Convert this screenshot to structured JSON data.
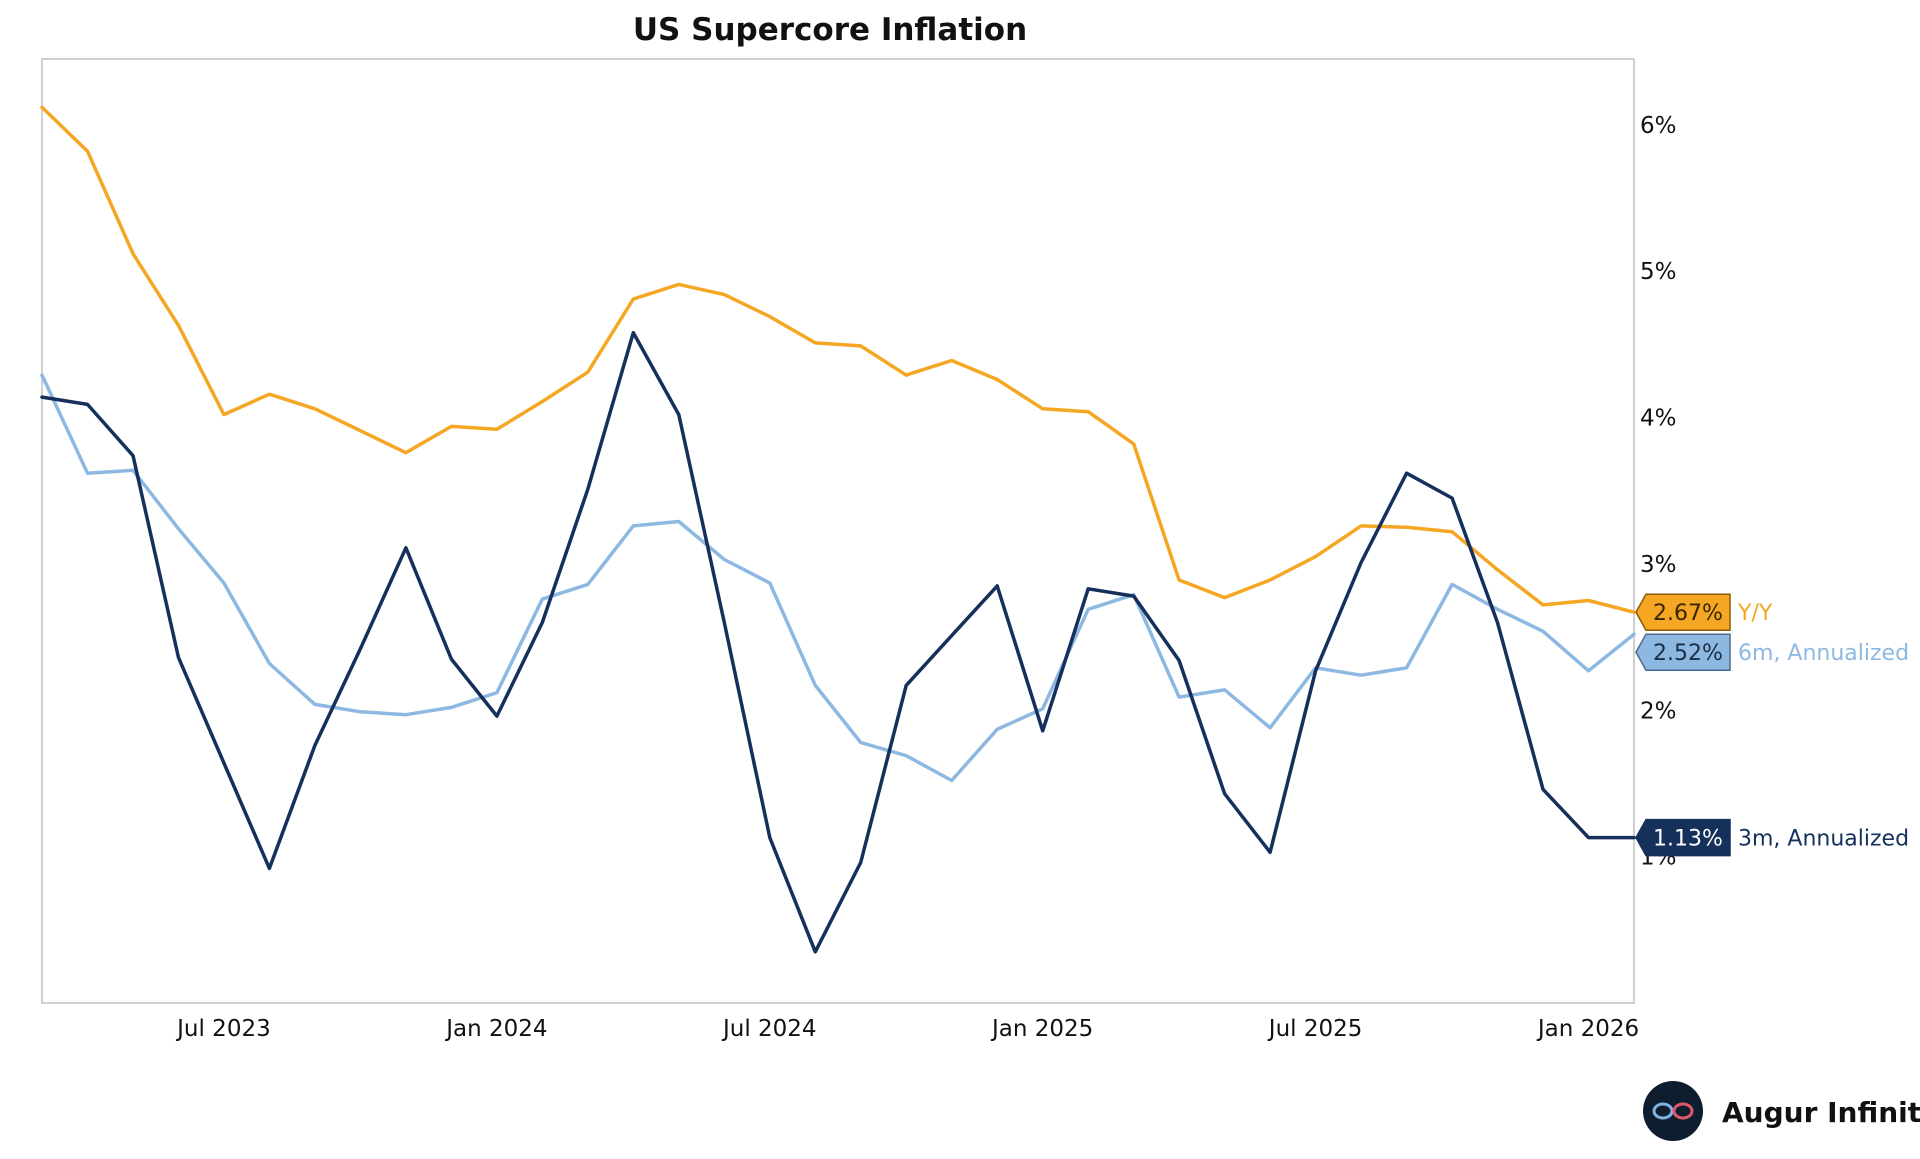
{
  "chart_data": {
    "type": "line",
    "title": "US Supercore Inflation",
    "x": [
      "2023-03",
      "2023-04",
      "2023-05",
      "2023-06",
      "2023-07",
      "2023-08",
      "2023-09",
      "2023-10",
      "2023-11",
      "2023-12",
      "2024-01",
      "2024-02",
      "2024-03",
      "2024-04",
      "2024-05",
      "2024-06",
      "2024-07",
      "2024-08",
      "2024-09",
      "2024-10",
      "2024-11",
      "2024-12",
      "2025-01",
      "2025-02",
      "2025-03",
      "2025-04",
      "2025-05",
      "2025-06",
      "2025-07",
      "2025-08",
      "2025-09",
      "2025-10",
      "2025-11",
      "2025-12",
      "2026-01",
      "2026-02"
    ],
    "x_ticks": [
      "Jul 2023",
      "Jan 2024",
      "Jul 2024",
      "Jan 2025",
      "Jul 2025",
      "Jan 2026"
    ],
    "y_ticks": [
      "1%",
      "2%",
      "3%",
      "4%",
      "5%",
      "6%"
    ],
    "ylim": [
      0.0,
      6.45
    ],
    "y_axis_side": "right",
    "series": [
      {
        "name": "Y/Y",
        "color": "#F5A623",
        "values": [
          6.12,
          5.82,
          5.12,
          4.63,
          4.02,
          4.16,
          4.06,
          3.91,
          3.76,
          3.94,
          3.92,
          4.11,
          4.31,
          4.81,
          4.91,
          4.84,
          4.69,
          4.51,
          4.49,
          4.29,
          4.39,
          4.26,
          4.06,
          4.04,
          3.82,
          2.89,
          2.77,
          2.89,
          3.05,
          3.26,
          3.25,
          3.22,
          2.96,
          2.72,
          2.75,
          2.67
        ],
        "end_label": "2.67%"
      },
      {
        "name": "6m, Annualized",
        "color": "#8DB8E2",
        "values": [
          4.29,
          3.62,
          3.64,
          3.24,
          2.87,
          2.32,
          2.04,
          1.99,
          1.97,
          2.02,
          2.12,
          2.76,
          2.86,
          3.26,
          3.29,
          3.03,
          2.87,
          2.17,
          1.78,
          1.69,
          1.52,
          1.87,
          2.01,
          2.69,
          2.79,
          2.09,
          2.14,
          1.88,
          2.29,
          2.24,
          2.29,
          2.86,
          2.69,
          2.54,
          2.27,
          2.52
        ],
        "end_label": "2.52%"
      },
      {
        "name": "3m, Annualized",
        "color": "#14305B",
        "values": [
          4.14,
          4.09,
          3.74,
          2.36,
          1.64,
          0.92,
          1.76,
          2.42,
          3.11,
          2.35,
          1.96,
          2.6,
          3.51,
          4.58,
          4.02,
          2.6,
          1.13,
          0.35,
          0.96,
          2.17,
          2.51,
          2.85,
          1.86,
          2.83,
          2.78,
          2.34,
          1.43,
          1.03,
          2.27,
          3.01,
          3.62,
          3.45,
          2.6,
          1.46,
          1.13,
          1.13
        ],
        "end_label": "1.13%"
      }
    ],
    "brand": "Augur Infinity"
  }
}
